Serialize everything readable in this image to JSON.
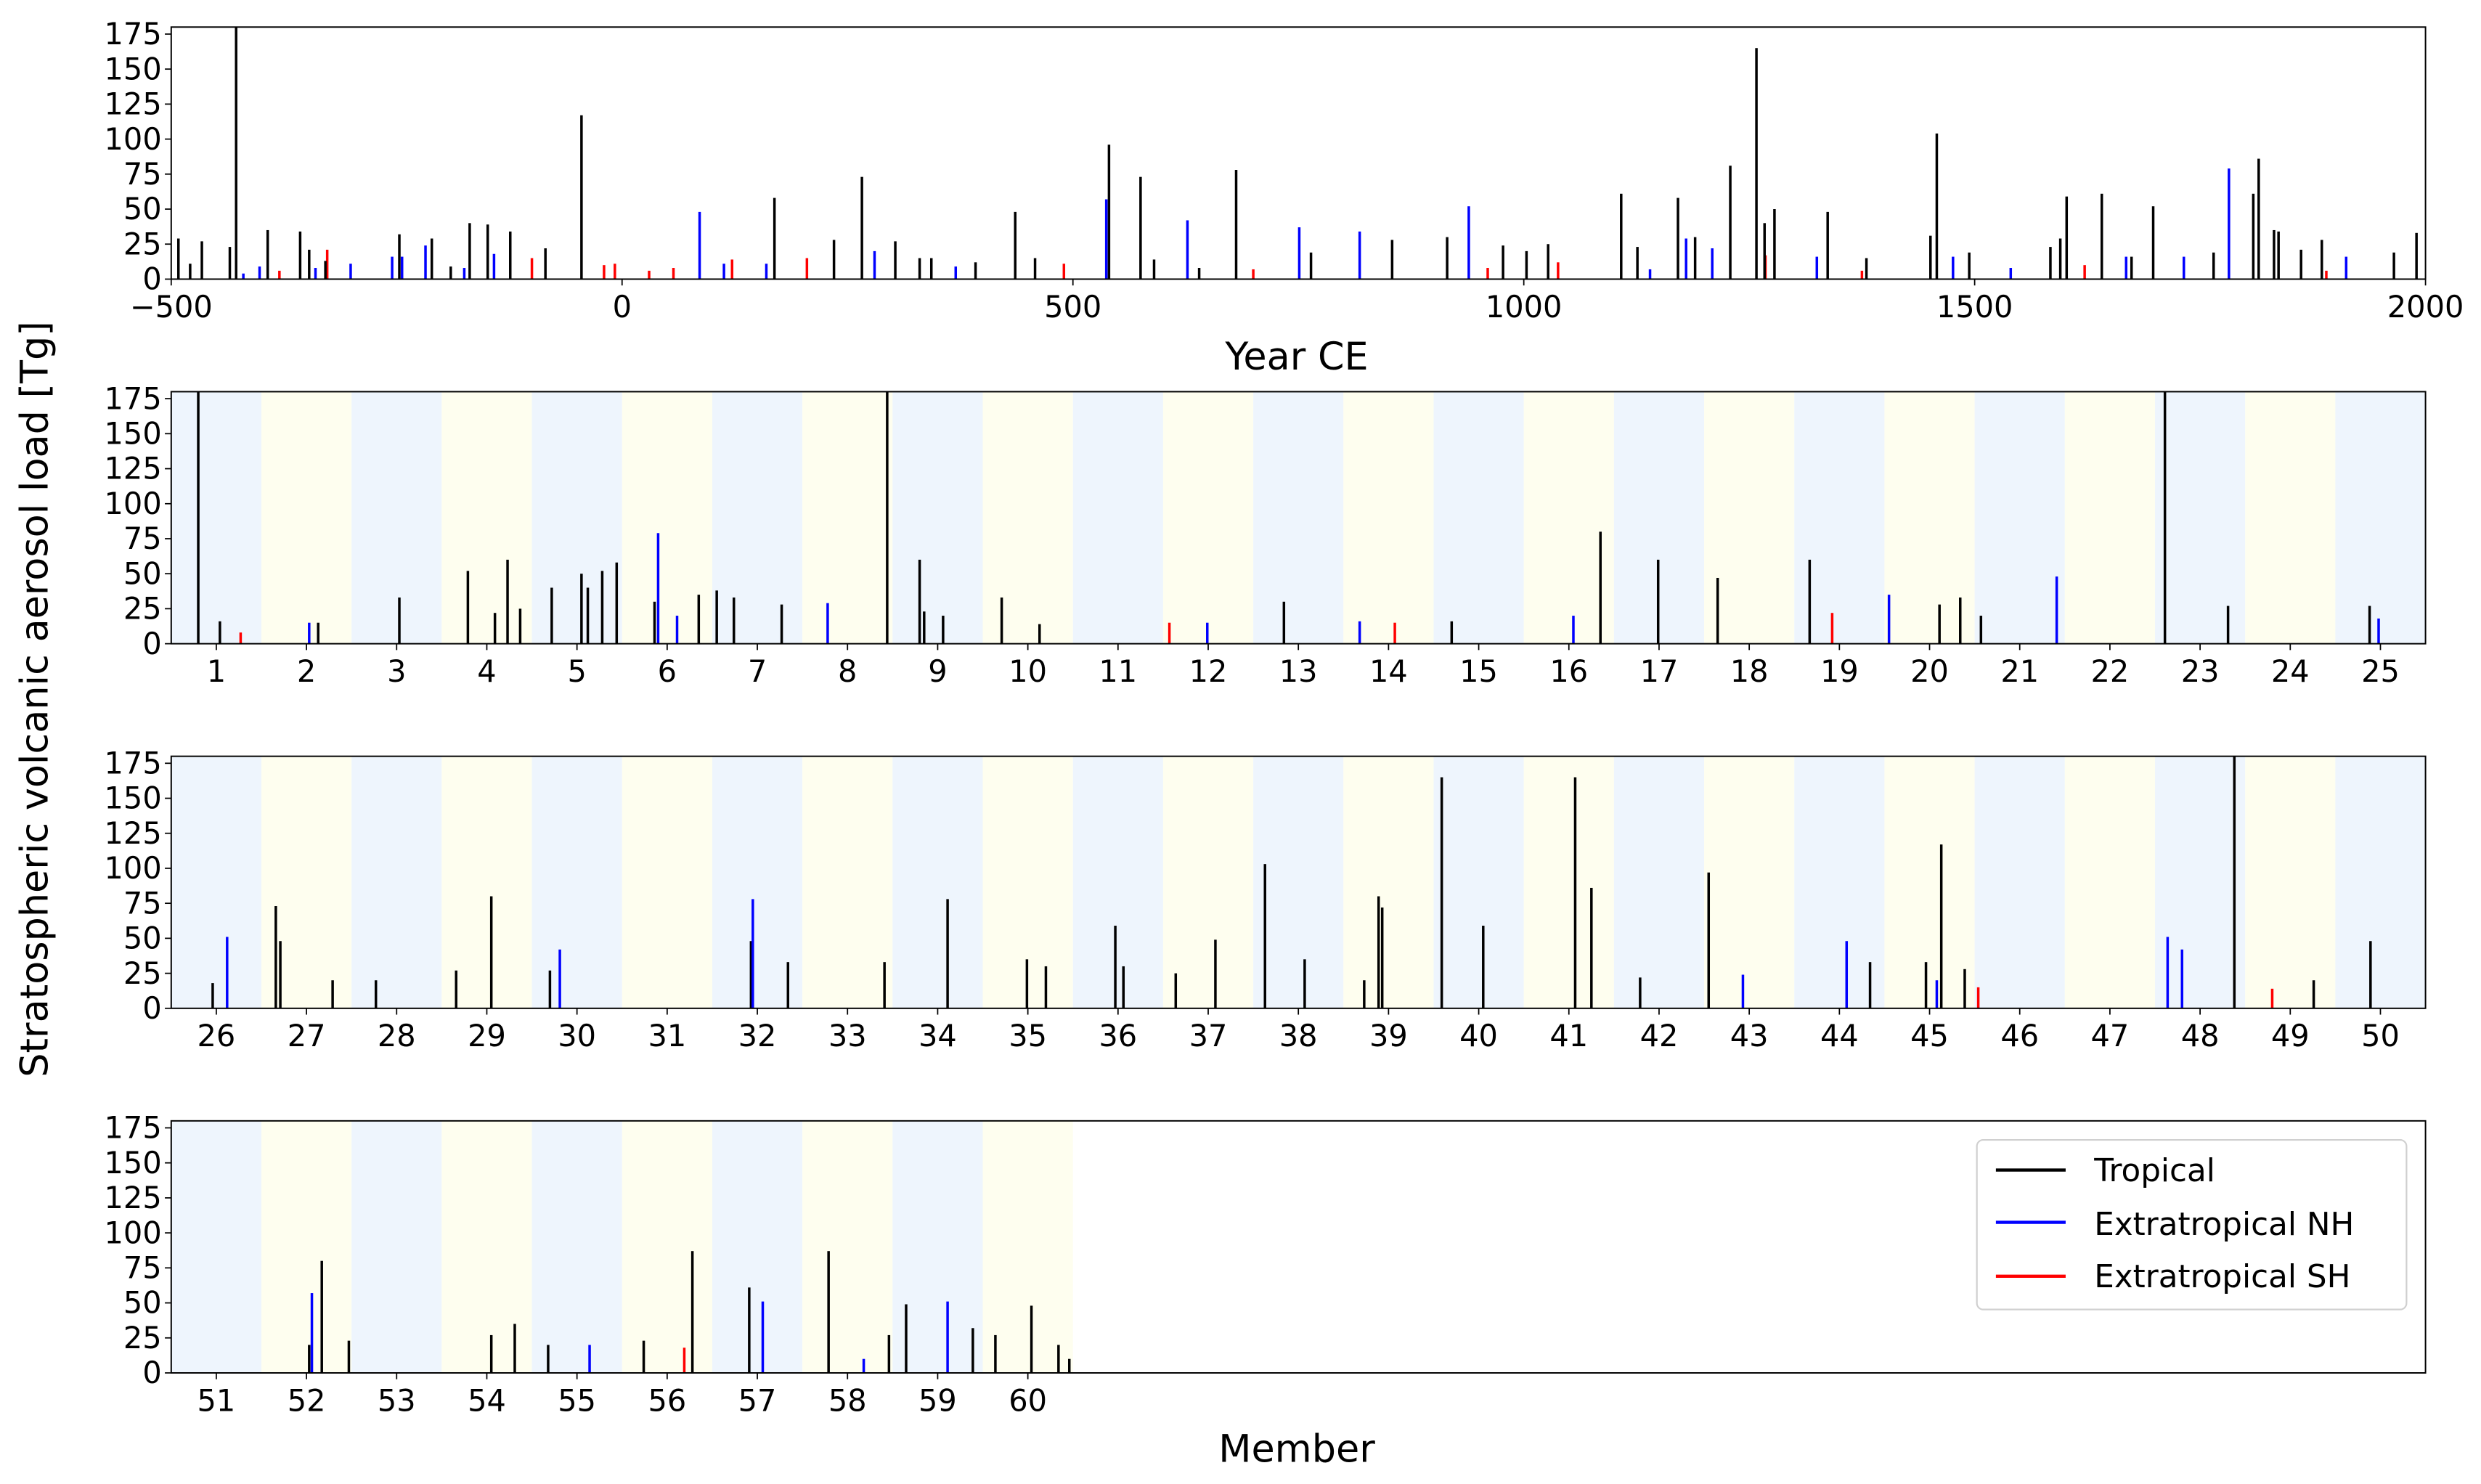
{
  "chart_data": [
    {
      "type": "bar",
      "panel": "timeline",
      "xlabel": "Year CE",
      "xlim": [
        -500,
        2000
      ],
      "xticks": [
        -500,
        0,
        500,
        1000,
        1500,
        2000
      ],
      "ylim": [
        0,
        180
      ],
      "yticks": [
        0,
        25,
        50,
        75,
        100,
        125,
        150,
        175
      ],
      "events": [
        [
          -492,
          29,
          "T"
        ],
        [
          -479,
          11,
          "T"
        ],
        [
          -466,
          27,
          "T"
        ],
        [
          -435,
          23,
          "T"
        ],
        [
          -428,
          180,
          "T"
        ],
        [
          -420,
          4,
          "N"
        ],
        [
          -402,
          9,
          "N"
        ],
        [
          -393,
          35,
          "T"
        ],
        [
          -380,
          6,
          "S"
        ],
        [
          -357,
          34,
          "T"
        ],
        [
          -347,
          21,
          "T"
        ],
        [
          -340,
          8,
          "N"
        ],
        [
          -327,
          21,
          "S"
        ],
        [
          -329,
          13,
          "T"
        ],
        [
          -301,
          11,
          "N"
        ],
        [
          -255,
          16,
          "N"
        ],
        [
          -247,
          32,
          "T"
        ],
        [
          -244,
          16,
          "N"
        ],
        [
          -218,
          24,
          "N"
        ],
        [
          -211,
          29,
          "T"
        ],
        [
          -190,
          9,
          "T"
        ],
        [
          -175,
          8,
          "N"
        ],
        [
          -169,
          40,
          "T"
        ],
        [
          -149,
          39,
          "T"
        ],
        [
          -142,
          18,
          "N"
        ],
        [
          -124,
          34,
          "T"
        ],
        [
          -100,
          15,
          "S"
        ],
        [
          -85,
          22,
          "T"
        ],
        [
          -45,
          117,
          "T"
        ],
        [
          -20,
          10,
          "S"
        ],
        [
          -8,
          11,
          "S"
        ],
        [
          30,
          6,
          "S"
        ],
        [
          57,
          8,
          "S"
        ],
        [
          86,
          48,
          "N"
        ],
        [
          113,
          11,
          "N"
        ],
        [
          122,
          14,
          "S"
        ],
        [
          160,
          11,
          "N"
        ],
        [
          169,
          58,
          "T"
        ],
        [
          205,
          15,
          "S"
        ],
        [
          235,
          28,
          "T"
        ],
        [
          266,
          73,
          "T"
        ],
        [
          280,
          20,
          "N"
        ],
        [
          303,
          27,
          "T"
        ],
        [
          330,
          15,
          "T"
        ],
        [
          343,
          15,
          "T"
        ],
        [
          370,
          9,
          "N"
        ],
        [
          392,
          12,
          "T"
        ],
        [
          436,
          48,
          "T"
        ],
        [
          458,
          15,
          "T"
        ],
        [
          490,
          11,
          "S"
        ],
        [
          537,
          57,
          "N"
        ],
        [
          540,
          96,
          "T"
        ],
        [
          575,
          73,
          "T"
        ],
        [
          590,
          14,
          "T"
        ],
        [
          627,
          42,
          "N"
        ],
        [
          640,
          8,
          "T"
        ],
        [
          681,
          78,
          "T"
        ],
        [
          700,
          7,
          "S"
        ],
        [
          751,
          37,
          "N"
        ],
        [
          764,
          19,
          "T"
        ],
        [
          818,
          34,
          "N"
        ],
        [
          854,
          28,
          "T"
        ],
        [
          915,
          30,
          "T"
        ],
        [
          939,
          52,
          "N"
        ],
        [
          960,
          8,
          "S"
        ],
        [
          977,
          24,
          "T"
        ],
        [
          1003,
          20,
          "T"
        ],
        [
          1027,
          25,
          "T"
        ],
        [
          1038,
          12,
          "S"
        ],
        [
          1108,
          61,
          "T"
        ],
        [
          1126,
          23,
          "T"
        ],
        [
          1140,
          7,
          "N"
        ],
        [
          1171,
          58,
          "T"
        ],
        [
          1180,
          29,
          "N"
        ],
        [
          1190,
          30,
          "T"
        ],
        [
          1209,
          22,
          "N"
        ],
        [
          1229,
          81,
          "T"
        ],
        [
          1258,
          165,
          "T"
        ],
        [
          1268,
          17,
          "S"
        ],
        [
          1267,
          40,
          "T"
        ],
        [
          1278,
          50,
          "T"
        ],
        [
          1325,
          16,
          "N"
        ],
        [
          1337,
          48,
          "T"
        ],
        [
          1380,
          15,
          "T"
        ],
        [
          1375,
          6,
          "S"
        ],
        [
          1451,
          31,
          "T"
        ],
        [
          1458,
          104,
          "T"
        ],
        [
          1476,
          16,
          "N"
        ],
        [
          1494,
          19,
          "T"
        ],
        [
          1540,
          8,
          "N"
        ],
        [
          1584,
          23,
          "T"
        ],
        [
          1595,
          29,
          "T"
        ],
        [
          1602,
          59,
          "T"
        ],
        [
          1622,
          10,
          "S"
        ],
        [
          1641,
          61,
          "T"
        ],
        [
          1668,
          16,
          "N"
        ],
        [
          1674,
          16,
          "T"
        ],
        [
          1698,
          52,
          "T"
        ],
        [
          1732,
          16,
          "N"
        ],
        [
          1765,
          19,
          "T"
        ],
        [
          1782,
          79,
          "N"
        ],
        [
          1809,
          61,
          "T"
        ],
        [
          1815,
          86,
          "T"
        ],
        [
          1832,
          35,
          "T"
        ],
        [
          1837,
          34,
          "T"
        ],
        [
          1862,
          21,
          "T"
        ],
        [
          1885,
          28,
          "T"
        ],
        [
          1890,
          6,
          "S"
        ],
        [
          1912,
          16,
          "N"
        ],
        [
          1965,
          19,
          "T"
        ],
        [
          1990,
          33,
          "T"
        ]
      ]
    },
    {
      "type": "bar",
      "panel": "members-1-25",
      "xlabel": "",
      "members": [
        1,
        25
      ],
      "ylim": [
        0,
        180
      ],
      "yticks": [
        0,
        25,
        50,
        75,
        100,
        125,
        150,
        175
      ],
      "events": [
        [
          0.8,
          180,
          "T"
        ],
        [
          1.04,
          16,
          "T"
        ],
        [
          1.27,
          8,
          "S"
        ],
        [
          2.03,
          15,
          "N"
        ],
        [
          2.13,
          15,
          "T"
        ],
        [
          3.03,
          33,
          "T"
        ],
        [
          3.79,
          52,
          "T"
        ],
        [
          4.09,
          22,
          "T"
        ],
        [
          4.23,
          60,
          "T"
        ],
        [
          4.37,
          25,
          "T"
        ],
        [
          4.72,
          40,
          "T"
        ],
        [
          5.05,
          50,
          "T"
        ],
        [
          5.12,
          40,
          "T"
        ],
        [
          5.28,
          52,
          "T"
        ],
        [
          5.44,
          58,
          "T"
        ],
        [
          5.86,
          30,
          "T"
        ],
        [
          5.9,
          79,
          "N"
        ],
        [
          6.11,
          20,
          "N"
        ],
        [
          6.35,
          35,
          "T"
        ],
        [
          6.55,
          38,
          "T"
        ],
        [
          6.74,
          33,
          "T"
        ],
        [
          7.27,
          28,
          "T"
        ],
        [
          7.78,
          29,
          "N"
        ],
        [
          8.44,
          180,
          "T"
        ],
        [
          8.8,
          60,
          "T"
        ],
        [
          8.85,
          23,
          "T"
        ],
        [
          9.06,
          20,
          "T"
        ],
        [
          9.71,
          33,
          "T"
        ],
        [
          10.13,
          14,
          "T"
        ],
        [
          11.57,
          15,
          "S"
        ],
        [
          11.99,
          15,
          "N"
        ],
        [
          12.84,
          30,
          "T"
        ],
        [
          13.68,
          16,
          "N"
        ],
        [
          14.07,
          15,
          "S"
        ],
        [
          14.7,
          16,
          "T"
        ],
        [
          16.05,
          20,
          "N"
        ],
        [
          16.35,
          80,
          "T"
        ],
        [
          16.99,
          60,
          "T"
        ],
        [
          17.65,
          47,
          "T"
        ],
        [
          18.67,
          60,
          "T"
        ],
        [
          18.92,
          22,
          "S"
        ],
        [
          19.55,
          35,
          "N"
        ],
        [
          20.11,
          28,
          "T"
        ],
        [
          20.34,
          33,
          "T"
        ],
        [
          20.57,
          20,
          "T"
        ],
        [
          21.41,
          48,
          "N"
        ],
        [
          22.61,
          180,
          "T"
        ],
        [
          23.31,
          27,
          "T"
        ],
        [
          24.88,
          27,
          "T"
        ],
        [
          24.98,
          18,
          "N"
        ]
      ]
    },
    {
      "type": "bar",
      "panel": "members-26-50",
      "xlabel": "",
      "members": [
        26,
        50
      ],
      "ylim": [
        0,
        180
      ],
      "yticks": [
        0,
        25,
        50,
        75,
        100,
        125,
        150,
        175
      ],
      "events": [
        [
          25.96,
          18,
          "T"
        ],
        [
          26.12,
          51,
          "N"
        ],
        [
          26.66,
          73,
          "T"
        ],
        [
          26.71,
          48,
          "T"
        ],
        [
          27.29,
          20,
          "T"
        ],
        [
          27.77,
          20,
          "T"
        ],
        [
          28.66,
          27,
          "T"
        ],
        [
          29.05,
          80,
          "T"
        ],
        [
          29.7,
          27,
          "T"
        ],
        [
          29.81,
          42,
          "N"
        ],
        [
          31.93,
          48,
          "T"
        ],
        [
          31.95,
          78,
          "N"
        ],
        [
          32.34,
          33,
          "T"
        ],
        [
          33.41,
          33,
          "T"
        ],
        [
          34.11,
          78,
          "T"
        ],
        [
          34.99,
          35,
          "T"
        ],
        [
          35.2,
          30,
          "T"
        ],
        [
          35.97,
          59,
          "T"
        ],
        [
          36.06,
          30,
          "T"
        ],
        [
          36.64,
          25,
          "T"
        ],
        [
          37.08,
          49,
          "T"
        ],
        [
          37.63,
          103,
          "T"
        ],
        [
          38.07,
          35,
          "T"
        ],
        [
          38.73,
          20,
          "T"
        ],
        [
          38.89,
          80,
          "T"
        ],
        [
          38.93,
          72,
          "T"
        ],
        [
          39.59,
          165,
          "T"
        ],
        [
          40.05,
          59,
          "T"
        ],
        [
          41.07,
          165,
          "T"
        ],
        [
          41.25,
          86,
          "T"
        ],
        [
          41.79,
          22,
          "T"
        ],
        [
          42.55,
          97,
          "T"
        ],
        [
          42.93,
          24,
          "N"
        ],
        [
          44.08,
          48,
          "N"
        ],
        [
          44.34,
          33,
          "T"
        ],
        [
          44.96,
          33,
          "T"
        ],
        [
          45.08,
          20,
          "N"
        ],
        [
          45.13,
          117,
          "T"
        ],
        [
          45.39,
          28,
          "T"
        ],
        [
          45.54,
          15,
          "S"
        ],
        [
          47.64,
          51,
          "N"
        ],
        [
          47.8,
          42,
          "N"
        ],
        [
          48.38,
          180,
          "T"
        ],
        [
          48.8,
          14,
          "S"
        ],
        [
          49.26,
          20,
          "T"
        ],
        [
          49.89,
          48,
          "T"
        ]
      ]
    },
    {
      "type": "bar",
      "panel": "members-51-60",
      "xlabel": "Member",
      "members": [
        51,
        60
      ],
      "axis_members": [
        51,
        75
      ],
      "ylim": [
        0,
        180
      ],
      "yticks": [
        0,
        25,
        50,
        75,
        100,
        125,
        150,
        175
      ],
      "events": [
        [
          52.03,
          20,
          "T"
        ],
        [
          52.06,
          57,
          "N"
        ],
        [
          52.17,
          80,
          "T"
        ],
        [
          52.47,
          23,
          "T"
        ],
        [
          54.05,
          27,
          "T"
        ],
        [
          54.31,
          35,
          "T"
        ],
        [
          54.68,
          20,
          "T"
        ],
        [
          55.14,
          20,
          "N"
        ],
        [
          55.74,
          23,
          "T"
        ],
        [
          56.19,
          18,
          "S"
        ],
        [
          56.28,
          87,
          "T"
        ],
        [
          56.91,
          61,
          "T"
        ],
        [
          57.06,
          51,
          "N"
        ],
        [
          57.79,
          87,
          "T"
        ],
        [
          58.18,
          10,
          "N"
        ],
        [
          58.46,
          27,
          "T"
        ],
        [
          58.65,
          49,
          "T"
        ],
        [
          59.11,
          51,
          "N"
        ],
        [
          59.39,
          32,
          "T"
        ],
        [
          59.64,
          27,
          "T"
        ],
        [
          60.04,
          48,
          "T"
        ],
        [
          60.34,
          20,
          "T"
        ],
        [
          60.46,
          10,
          "T"
        ]
      ]
    }
  ],
  "ylabel": "Stratospheric volcanic aerosol load [Tg]",
  "legend": {
    "placement": "lower-right of last panel",
    "entries": [
      {
        "key": "T",
        "label": "Tropical",
        "color": "#000000"
      },
      {
        "key": "N",
        "label": "Extratropical NH",
        "color": "#0000ff"
      },
      {
        "key": "S",
        "label": "Extratropical SH",
        "color": "#ff0000"
      }
    ]
  },
  "band_colors": [
    "#eef5fd",
    "#fefeef"
  ]
}
